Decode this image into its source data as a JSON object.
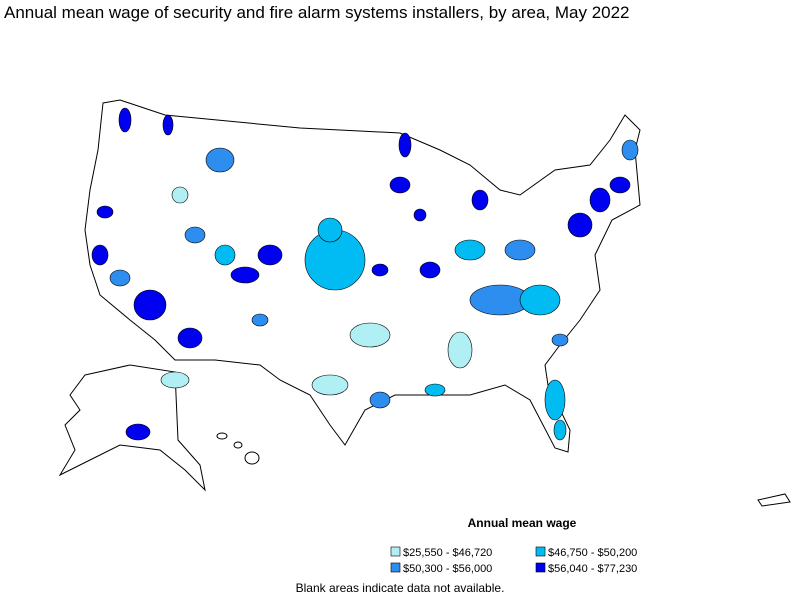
{
  "title": "Annual mean wage of security and fire alarm systems installers, by area, May 2022",
  "legend": {
    "title": "Annual mean wage",
    "items": [
      {
        "label": "$25,550 - $46,720",
        "color": "#b0f0f4"
      },
      {
        "label": "$46,750 - $50,200",
        "color": "#00bcf2"
      },
      {
        "label": "$50,300 - $56,000",
        "color": "#2e8ef0"
      },
      {
        "label": "$56,040 - $77,230",
        "color": "#0000f0"
      }
    ]
  },
  "note": "Blank areas indicate data not available."
}
